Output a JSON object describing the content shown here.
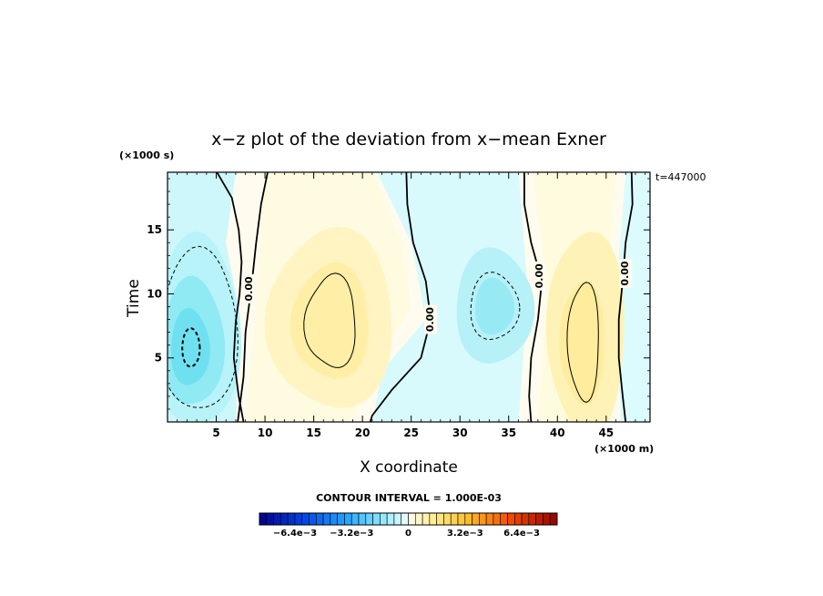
{
  "chart_data": {
    "type": "heatmap",
    "title": "x−z plot of the deviation from x−mean Exner",
    "xlabel": "X coordinate",
    "ylabel": "Time",
    "x_unit": "(×1000 m)",
    "y_unit": "(×1000 s)",
    "annotation": "t=447000",
    "xlim": [
      0,
      49.5
    ],
    "ylim": [
      0,
      19.5
    ],
    "x_ticks": [
      5,
      10,
      15,
      20,
      25,
      30,
      35,
      40,
      45
    ],
    "y_ticks": [
      5,
      10,
      15
    ],
    "contour_interval_text": "CONTOUR INTERVAL = 1.000E-03",
    "zero_contour_labels": [
      "0.00",
      "0.00",
      "0.00",
      "0.00"
    ],
    "extrema": [
      {
        "kind": "negative",
        "x": 2.5,
        "y": 6.0,
        "value": -0.004
      },
      {
        "kind": "positive",
        "x": 17.0,
        "y": 7.5,
        "value": 0.002
      },
      {
        "kind": "negative",
        "x": 33.5,
        "y": 9.0,
        "value": -0.002
      },
      {
        "kind": "positive",
        "x": 43.0,
        "y": 6.0,
        "value": 0.002
      }
    ],
    "colorbar": {
      "ticks": [
        {
          "value": -0.0064,
          "label": "−6.4e−3"
        },
        {
          "value": -0.0032,
          "label": "−3.2e−3"
        },
        {
          "value": 0,
          "label": "0"
        },
        {
          "value": 0.0032,
          "label": "3.2e−3"
        },
        {
          "value": 0.0064,
          "label": "6.4e−3"
        }
      ],
      "range": [
        -0.0084,
        0.0084
      ],
      "levels": 42
    },
    "colors": {
      "negative_strong": "#0000aa",
      "negative_mid": "#37b8ff",
      "negative_weak": "#dffbff",
      "positive_weak": "#fffbdf",
      "positive_mid": "#ffb400",
      "positive_strong": "#aa0000"
    }
  }
}
